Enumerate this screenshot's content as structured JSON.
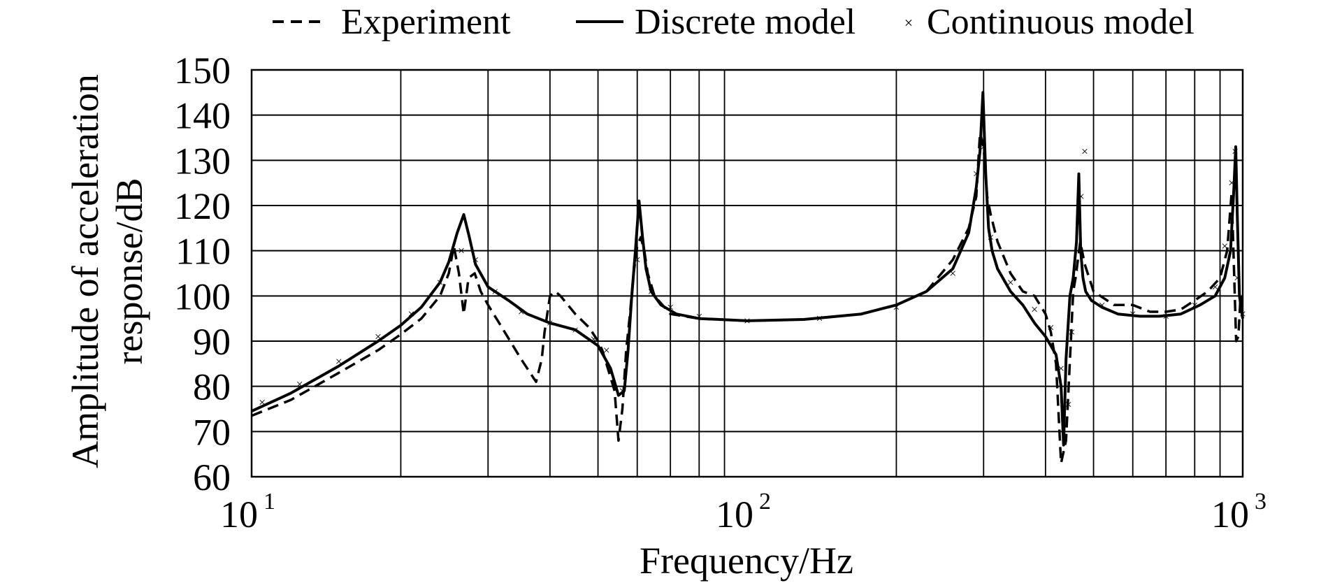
{
  "chart_data": {
    "type": "line",
    "xlabel": "Frequency/Hz",
    "ylabel": [
      "Amplitude of acceleration",
      "response/dB"
    ],
    "xscale": "log",
    "xlim": [
      10,
      1000
    ],
    "ylim": [
      60,
      150
    ],
    "x_ticks": [
      {
        "value": 10,
        "base": "10",
        "exp": "1"
      },
      {
        "value": 100,
        "base": "10",
        "exp": "2"
      },
      {
        "value": 1000,
        "base": "10",
        "exp": "3"
      }
    ],
    "y_ticks": [
      "60",
      "70",
      "80",
      "90",
      "100",
      "110",
      "120",
      "130",
      "140",
      "150"
    ],
    "grid": true,
    "legend_position": "top",
    "legend": [
      "Experiment",
      "Discrete model",
      "Continuous model"
    ],
    "series": [
      {
        "name": "Experiment",
        "style": "dashed",
        "x": [
          10,
          12,
          15,
          18,
          20,
          22,
          24,
          25,
          25.6,
          26.2,
          26.8,
          27.4,
          28.2,
          29,
          30,
          32,
          35,
          37.5,
          38.5,
          39,
          40,
          41,
          42,
          45,
          48,
          50,
          51,
          52,
          53,
          54,
          55,
          56,
          57,
          58,
          59,
          60,
          61,
          62,
          63,
          65,
          70,
          80,
          100,
          130,
          170,
          200,
          230,
          260,
          280,
          290,
          295,
          300,
          305,
          310,
          320,
          340,
          360,
          380,
          400,
          410,
          420,
          430,
          440,
          450,
          455,
          460,
          465,
          470,
          480,
          500,
          550,
          600,
          650,
          700,
          750,
          800,
          850,
          900,
          930,
          950,
          970,
          980,
          990,
          1000
        ],
        "y": [
          73.5,
          77,
          83,
          88,
          91.5,
          95,
          100,
          105,
          111,
          105,
          96,
          104,
          105,
          101,
          98,
          93,
          86,
          81,
          86,
          92,
          100,
          101,
          100,
          96,
          93,
          90,
          88,
          85,
          82,
          79,
          68,
          75,
          88,
          96,
          105,
          111,
          113,
          110,
          105,
          100,
          96,
          95,
          94.5,
          94.8,
          96,
          98,
          101,
          108,
          115,
          122,
          136,
          133,
          122,
          118,
          112,
          105,
          101,
          100,
          96,
          92,
          85,
          63,
          68,
          90,
          101,
          104,
          108,
          112,
          107,
          101,
          98,
          98,
          96.5,
          96.5,
          97,
          99,
          101,
          104,
          110,
          123,
          90,
          91,
          100,
          96
        ]
      },
      {
        "name": "Discrete model",
        "style": "solid",
        "x": [
          10,
          12,
          15,
          18,
          20,
          22,
          24,
          25,
          26,
          26.8,
          27.5,
          28.3,
          30,
          33,
          36,
          40,
          45,
          50,
          53,
          55,
          56.5,
          57.5,
          58.5,
          59.5,
          60.5,
          61.5,
          62.5,
          64,
          67,
          72,
          80,
          100,
          130,
          170,
          200,
          230,
          260,
          280,
          290,
          295,
          299,
          303,
          307,
          312,
          320,
          340,
          360,
          380,
          400,
          420,
          430,
          435,
          440,
          448,
          455,
          462,
          467,
          471,
          476,
          482,
          495,
          520,
          560,
          620,
          680,
          750,
          820,
          880,
          920,
          945,
          960,
          968,
          975,
          985,
          1000
        ],
        "y": [
          74.5,
          78.5,
          84.5,
          90,
          93.5,
          97.5,
          103,
          107.5,
          114,
          118,
          113,
          107,
          102,
          99,
          96,
          94,
          92.5,
          89,
          84,
          78,
          79,
          88,
          100,
          110,
          121,
          113,
          106,
          101,
          98,
          96,
          95,
          94.5,
          94.8,
          96,
          98,
          101,
          106,
          114,
          124,
          132,
          145,
          127,
          115,
          110,
          106,
          101,
          98,
          94,
          91,
          87,
          80,
          67,
          86,
          100,
          104,
          112,
          127,
          110,
          104,
          101,
          99,
          97.5,
          96,
          95.5,
          95.5,
          96,
          98,
          100,
          104,
          110,
          124,
          133,
          118,
          100,
          95
        ]
      },
      {
        "name": "Continuous model",
        "style": "marker-x",
        "x": [
          10.5,
          12.5,
          15,
          18,
          21,
          24,
          26.5,
          28.3,
          31,
          35,
          40,
          45,
          49,
          52,
          56,
          60,
          64,
          70,
          80,
          100,
          140,
          200,
          260,
          290,
          300,
          310,
          340,
          380,
          410,
          430,
          445,
          452,
          460,
          467,
          472,
          480,
          520,
          600,
          700,
          800,
          880,
          920,
          950,
          965,
          975,
          1000
        ],
        "y": [
          76.5,
          80.5,
          85.5,
          91,
          96,
          103,
          110,
          108,
          101,
          96.5,
          94,
          92.5,
          90.5,
          88,
          79,
          108,
          101,
          97.5,
          95.5,
          94.5,
          95,
          97.5,
          105,
          127,
          133,
          113,
          103,
          97,
          93,
          84,
          76,
          92,
          106,
          116,
          122,
          132,
          98,
          96,
          95.5,
          98,
          102,
          111,
          125,
          132,
          104,
          96
        ]
      }
    ]
  }
}
